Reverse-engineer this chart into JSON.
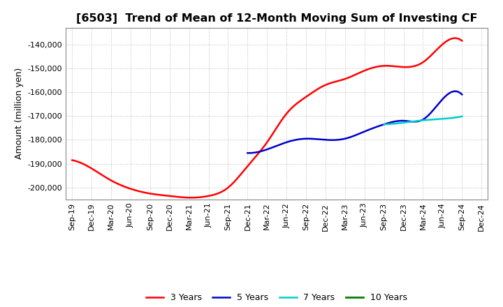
{
  "title": "[6503]  Trend of Mean of 12-Month Moving Sum of Investing CF",
  "ylabel": "Amount (million yen)",
  "background_color": "#ffffff",
  "grid_color": "#bbbbbb",
  "title_fontsize": 11.5,
  "label_fontsize": 9,
  "tick_fontsize": 8,
  "legend_fontsize": 9,
  "ylim": [
    -205000,
    -133000
  ],
  "yticks": [
    -200000,
    -190000,
    -180000,
    -170000,
    -160000,
    -150000,
    -140000
  ],
  "series": {
    "3yr": {
      "color": "#ff0000",
      "label": "3 Years",
      "x": [
        2019.667,
        2019.917,
        2020.167,
        2020.417,
        2020.667,
        2020.917,
        2021.167,
        2021.417,
        2021.667,
        2021.917,
        2022.167,
        2022.417,
        2022.667,
        2022.917,
        2023.167,
        2023.417,
        2023.667,
        2023.917,
        2024.167,
        2024.417,
        2024.667
      ],
      "y": [
        -188500,
        -192000,
        -197000,
        -200500,
        -202500,
        -203500,
        -204200,
        -203500,
        -200000,
        -191000,
        -181000,
        -169000,
        -162000,
        -157000,
        -154500,
        -151000,
        -149000,
        -149500,
        -147500,
        -140000,
        -138500
      ]
    },
    "5yr": {
      "color": "#0000cc",
      "label": "5 Years",
      "x": [
        2021.917,
        2022.167,
        2022.417,
        2022.667,
        2022.917,
        2023.167,
        2023.417,
        2023.667,
        2023.917,
        2024.167,
        2024.417,
        2024.667
      ],
      "y": [
        -185500,
        -184000,
        -181000,
        -179500,
        -180000,
        -179500,
        -176500,
        -173500,
        -172000,
        -171500,
        -163000,
        -161000
      ]
    },
    "7yr": {
      "color": "#00cccc",
      "label": "7 Years",
      "x": [
        2023.667,
        2023.917,
        2024.167,
        2024.417,
        2024.667
      ],
      "y": [
        -173500,
        -172800,
        -171800,
        -171200,
        -170200
      ]
    },
    "10yr": {
      "color": "#008000",
      "label": "10 Years",
      "x": [],
      "y": []
    }
  },
  "xtick_positions": [
    2019.667,
    2019.917,
    2020.167,
    2020.417,
    2020.667,
    2020.917,
    2021.167,
    2021.417,
    2021.667,
    2021.917,
    2022.167,
    2022.417,
    2022.667,
    2022.917,
    2023.167,
    2023.417,
    2023.667,
    2023.917,
    2024.167,
    2024.417,
    2024.667,
    2024.917
  ],
  "xtick_labels": [
    "Sep-19",
    "Dec-19",
    "Mar-20",
    "Jun-20",
    "Sep-20",
    "Dec-20",
    "Mar-21",
    "Jun-21",
    "Sep-21",
    "Dec-21",
    "Mar-22",
    "Jun-22",
    "Sep-22",
    "Dec-22",
    "Mar-23",
    "Jun-23",
    "Sep-23",
    "Dec-23",
    "Mar-24",
    "Jun-24",
    "Sep-24",
    "Dec-24"
  ]
}
